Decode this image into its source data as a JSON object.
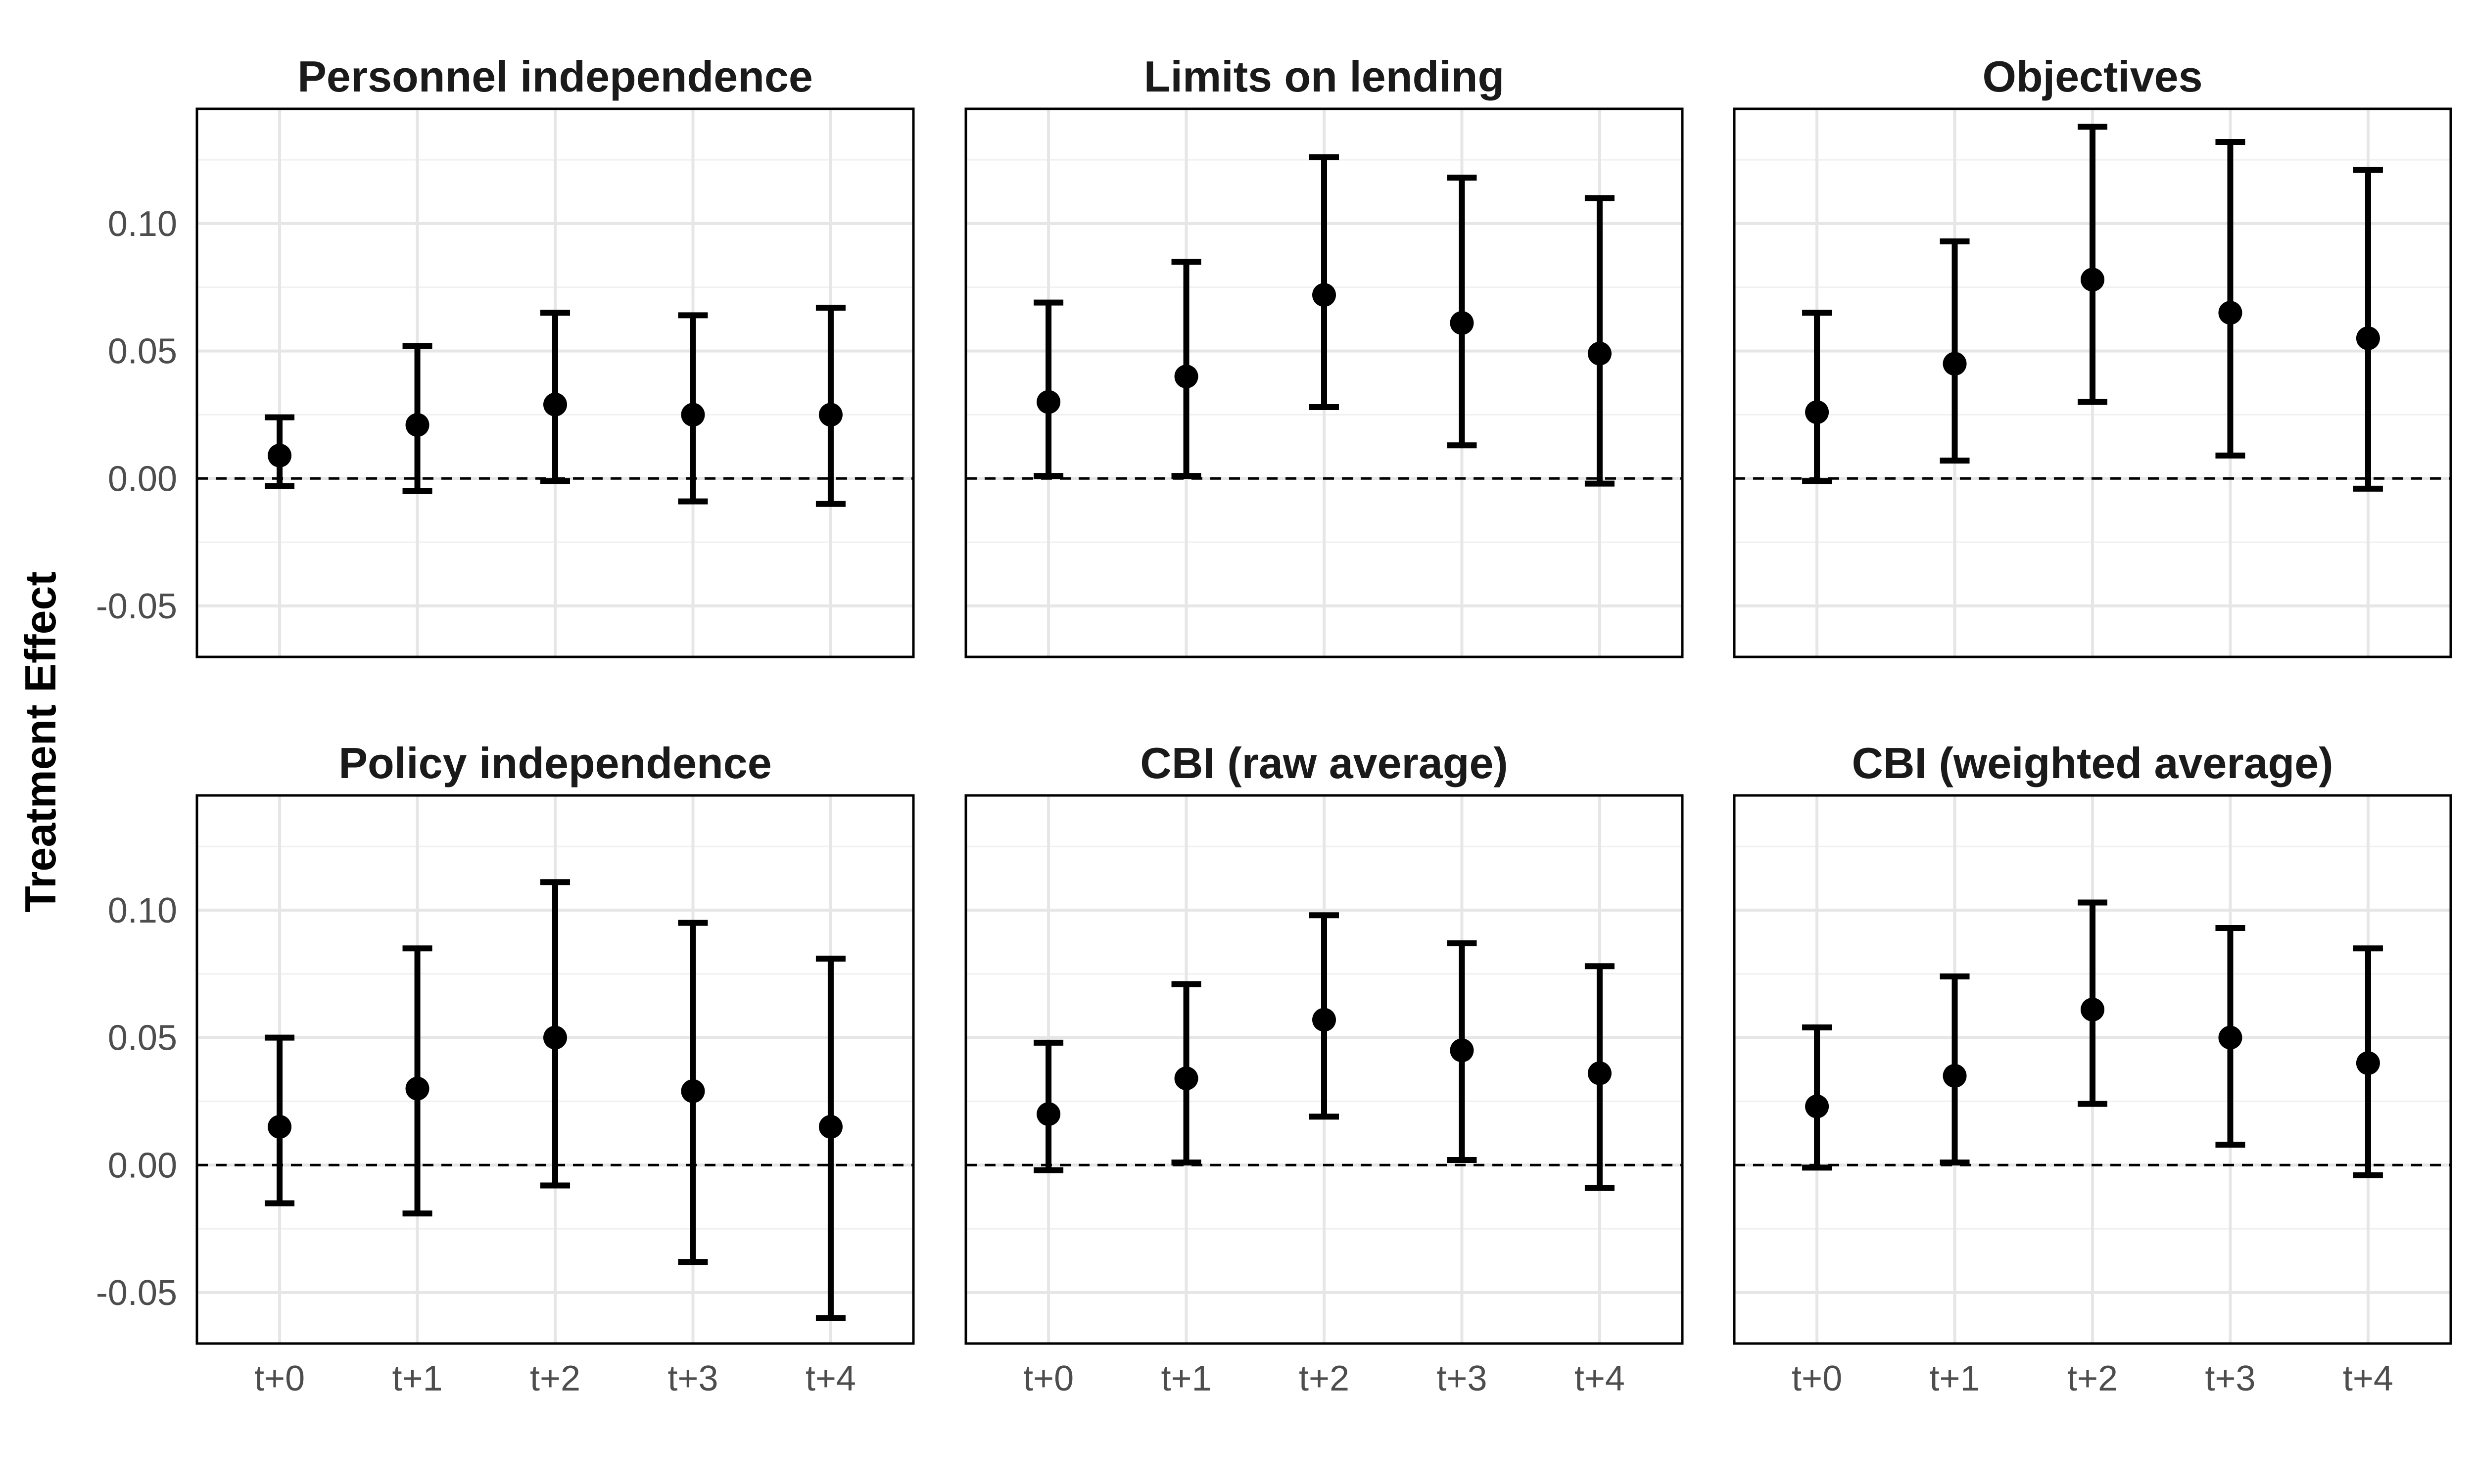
{
  "figure": {
    "ylabel": "Treatment Effect"
  },
  "chart_data": {
    "type": "scatter",
    "subtype": "point-errorbar",
    "layout": "2x3 facets",
    "categories": [
      "t+0",
      "t+1",
      "t+2",
      "t+3",
      "t+4"
    ],
    "ylim": [
      -0.07,
      0.145
    ],
    "y_ticks": [
      -0.05,
      0.0,
      0.05,
      0.1
    ],
    "y_tick_labels": [
      "-0.05",
      "0.00",
      "0.05",
      "0.10"
    ],
    "reference_line": {
      "y": 0,
      "style": "dashed"
    },
    "grid": true,
    "facets": [
      {
        "title": "Personnel independence",
        "values": [
          0.009,
          0.021,
          0.029,
          0.025,
          0.025
        ],
        "lower": [
          -0.003,
          -0.005,
          -0.001,
          -0.009,
          -0.01
        ],
        "upper": [
          0.024,
          0.052,
          0.065,
          0.064,
          0.067
        ]
      },
      {
        "title": "Limits on lending",
        "values": [
          0.03,
          0.04,
          0.072,
          0.061,
          0.049
        ],
        "lower": [
          0.001,
          0.001,
          0.028,
          0.013,
          -0.002
        ],
        "upper": [
          0.069,
          0.085,
          0.126,
          0.118,
          0.11
        ]
      },
      {
        "title": "Objectives",
        "values": [
          0.026,
          0.045,
          0.078,
          0.065,
          0.055
        ],
        "lower": [
          -0.001,
          0.007,
          0.03,
          0.009,
          -0.004
        ],
        "upper": [
          0.065,
          0.093,
          0.138,
          0.132,
          0.121
        ]
      },
      {
        "title": "Policy independence",
        "values": [
          0.015,
          0.03,
          0.05,
          0.029,
          0.015
        ],
        "lower": [
          -0.015,
          -0.019,
          -0.008,
          -0.038,
          -0.06
        ],
        "upper": [
          0.05,
          0.085,
          0.111,
          0.095,
          0.081
        ]
      },
      {
        "title": "CBI (raw average)",
        "values": [
          0.02,
          0.034,
          0.057,
          0.045,
          0.036
        ],
        "lower": [
          -0.002,
          0.001,
          0.019,
          0.002,
          -0.009
        ],
        "upper": [
          0.048,
          0.071,
          0.098,
          0.087,
          0.078
        ]
      },
      {
        "title": "CBI (weighted average)",
        "values": [
          0.023,
          0.035,
          0.061,
          0.05,
          0.04
        ],
        "lower": [
          -0.001,
          0.001,
          0.024,
          0.008,
          -0.004
        ],
        "upper": [
          0.054,
          0.074,
          0.103,
          0.093,
          0.085
        ]
      }
    ]
  }
}
